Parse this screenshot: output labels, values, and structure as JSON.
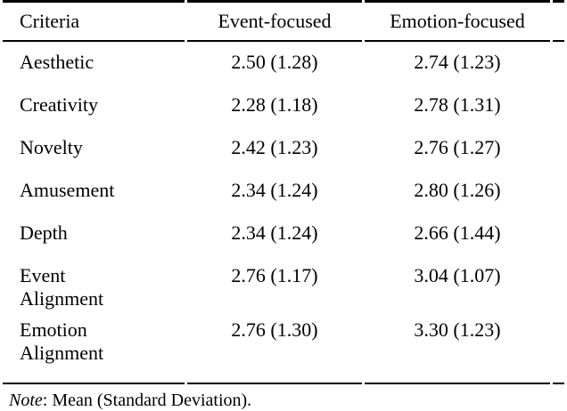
{
  "colors": {
    "background": "#ffffff",
    "text": "#000000",
    "rule": "#000000"
  },
  "table": {
    "headers": [
      "Criteria",
      "Event-focused",
      "Emotion-focused"
    ],
    "rows": [
      {
        "criteria": "Aesthetic",
        "event": "2.50 (1.28)",
        "emotion": "2.74 (1.23)"
      },
      {
        "criteria": "Creativity",
        "event": "2.28 (1.18)",
        "emotion": "2.78 (1.31)"
      },
      {
        "criteria": "Novelty",
        "event": "2.42 (1.23)",
        "emotion": "2.76 (1.27)"
      },
      {
        "criteria": "Amusement",
        "event": "2.34 (1.24)",
        "emotion": "2.80 (1.26)"
      },
      {
        "criteria": "Depth",
        "event": "2.34 (1.24)",
        "emotion": "2.66 (1.44)"
      },
      {
        "criteria": "Event Alignment",
        "event": "2.76 (1.17)",
        "emotion": "3.04 (1.07)"
      },
      {
        "criteria": "Emotion Alignment",
        "event": "2.76 (1.30)",
        "emotion": "3.30 (1.23)"
      }
    ],
    "note": {
      "label": "Note",
      "text": ": Mean (Standard Deviation)."
    }
  }
}
